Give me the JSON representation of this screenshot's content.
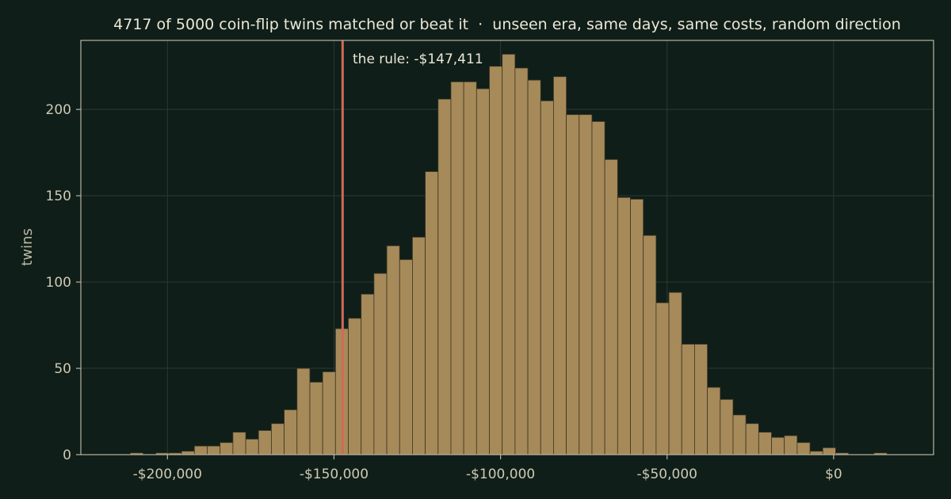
{
  "chart_data": {
    "type": "bar",
    "title": "4717 of 5000 coin-flip twins matched or beat it  ·  unseen era, same days, same costs, random direction",
    "xlabel": "",
    "ylabel": "twins",
    "xlim": [
      -226000,
      30000
    ],
    "ylim": [
      0,
      240
    ],
    "xticks": [
      -200000,
      -150000,
      -100000,
      -50000,
      0
    ],
    "xtick_labels": [
      "-$200,000",
      "-$150,000",
      "-$100,000",
      "-$50,000",
      "$0"
    ],
    "yticks": [
      0,
      50,
      100,
      150,
      200
    ],
    "ytick_labels": [
      "0",
      "50",
      "100",
      "150",
      "200"
    ],
    "grid": true,
    "bin_width": 3850,
    "bin_start": -215000,
    "counts": [
      0,
      1,
      0,
      1,
      1,
      2,
      5,
      5,
      7,
      13,
      9,
      14,
      18,
      26,
      50,
      42,
      48,
      73,
      79,
      93,
      105,
      121,
      113,
      126,
      164,
      206,
      216,
      216,
      212,
      225,
      232,
      224,
      217,
      205,
      219,
      197,
      197,
      193,
      171,
      149,
      148,
      127,
      88,
      94,
      64,
      64,
      39,
      32,
      23,
      18,
      13,
      10,
      11,
      7,
      2,
      4,
      1,
      0,
      0,
      1,
      0
    ],
    "reference_line": {
      "x": -147411,
      "label": "the rule: -$147,411",
      "color": "#cf6a58"
    },
    "colors": {
      "background": "#0f1e18",
      "bar_fill": "#a68a59",
      "bar_edge": "#3c3524",
      "axis": "#b8b3a3",
      "grid": "#2b3a31"
    }
  }
}
